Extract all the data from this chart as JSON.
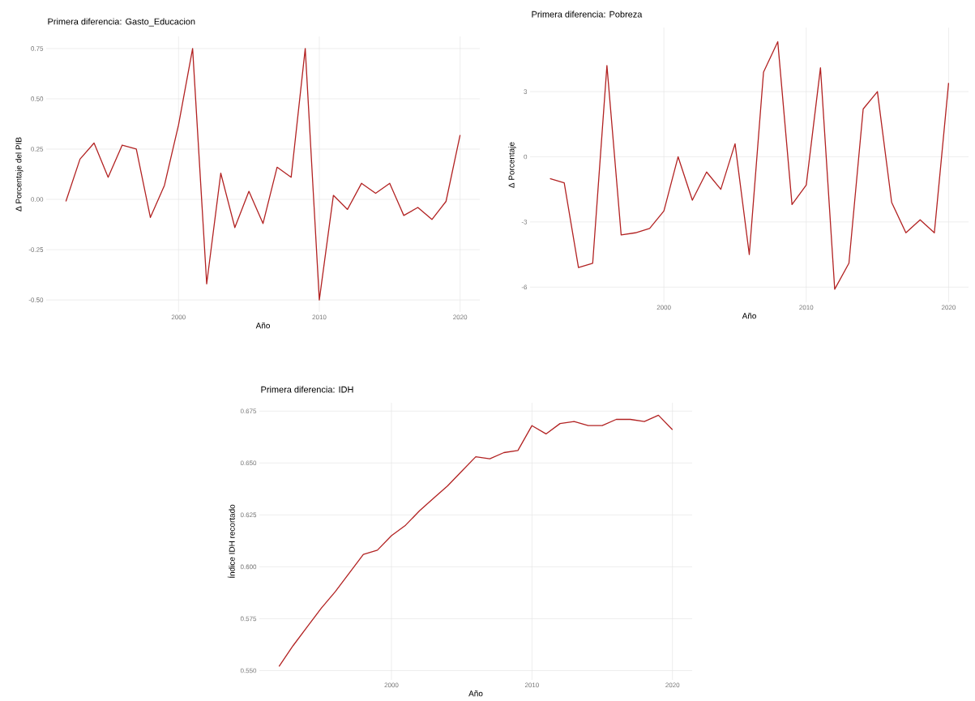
{
  "chart_data": [
    {
      "type": "line",
      "title": "Primera diferencia: Gasto_Educacion",
      "xlabel": "Año",
      "ylabel": "Δ Porcentaje del PIB",
      "color": "#b22222",
      "grid": true,
      "x": [
        1992,
        1993,
        1994,
        1995,
        1996,
        1997,
        1998,
        1999,
        2000,
        2001,
        2002,
        2003,
        2004,
        2005,
        2006,
        2007,
        2008,
        2009,
        2010,
        2011,
        2012,
        2013,
        2014,
        2015,
        2016,
        2017,
        2018,
        2019,
        2020
      ],
      "values": [
        -0.01,
        0.2,
        0.28,
        0.11,
        0.27,
        0.25,
        -0.09,
        0.07,
        0.37,
        0.75,
        -0.42,
        0.13,
        -0.14,
        0.04,
        -0.12,
        0.16,
        0.11,
        0.75,
        -0.5,
        0.02,
        -0.05,
        0.08,
        0.03,
        0.08,
        -0.08,
        -0.04,
        -0.1,
        -0.01,
        0.32
      ],
      "xlim": [
        1990.6,
        2021.4
      ],
      "ylim": [
        -0.56,
        0.81
      ],
      "xticks": [
        2000,
        2010,
        2020
      ],
      "yticks": [
        {
          "value": -0.5,
          "label": "-0.50"
        },
        {
          "value": -0.25,
          "label": "-0.25"
        },
        {
          "value": 0,
          "label": "0.00"
        },
        {
          "value": 0.25,
          "label": "0.25"
        },
        {
          "value": 0.5,
          "label": "0.50"
        },
        {
          "value": 0.75,
          "label": "0.75"
        }
      ]
    },
    {
      "type": "line",
      "title": "Primera diferencia: Pobreza",
      "xlabel": "Año",
      "ylabel": "Δ Porcentaje",
      "color": "#b22222",
      "grid": true,
      "x": [
        1992,
        1993,
        1994,
        1995,
        1996,
        1997,
        1998,
        1999,
        2000,
        2001,
        2002,
        2003,
        2004,
        2005,
        2006,
        2007,
        2008,
        2009,
        2010,
        2011,
        2012,
        2013,
        2014,
        2015,
        2016,
        2017,
        2018,
        2019,
        2020
      ],
      "values": [
        -1.0,
        -1.2,
        -5.1,
        -4.9,
        4.2,
        -3.6,
        -3.5,
        -3.3,
        -2.5,
        0.0,
        -2.0,
        -0.7,
        -1.5,
        0.6,
        -4.5,
        3.9,
        5.3,
        -2.2,
        -1.3,
        4.1,
        -6.1,
        -4.9,
        2.2,
        3.0,
        -2.1,
        -3.5,
        -2.9,
        -3.5,
        3.4
      ],
      "xlim": [
        1990.6,
        2021.4
      ],
      "ylim": [
        -6.7,
        5.95
      ],
      "xticks": [
        2000,
        2010,
        2020
      ],
      "yticks": [
        -6,
        -3,
        0,
        3
      ]
    },
    {
      "type": "line",
      "title": "Primera diferencia: IDH",
      "xlabel": "Año",
      "ylabel": "Índice IDH recortado",
      "color": "#b22222",
      "grid": true,
      "x": [
        1992,
        1993,
        1994,
        1995,
        1996,
        1997,
        1998,
        1999,
        2000,
        2001,
        2002,
        2003,
        2004,
        2005,
        2006,
        2007,
        2008,
        2009,
        2010,
        2011,
        2012,
        2013,
        2014,
        2015,
        2016,
        2017,
        2018,
        2019,
        2020
      ],
      "values": [
        0.552,
        0.562,
        0.571,
        0.58,
        0.588,
        0.597,
        0.606,
        0.608,
        0.615,
        0.62,
        0.627,
        0.633,
        0.639,
        0.646,
        0.653,
        0.652,
        0.655,
        0.656,
        0.668,
        0.664,
        0.669,
        0.67,
        0.668,
        0.668,
        0.671,
        0.671,
        0.67,
        0.673,
        0.666
      ],
      "xlim": [
        1990.6,
        2021.4
      ],
      "ylim": [
        0.5455,
        0.679
      ],
      "xticks": [
        2000,
        2010,
        2020
      ],
      "yticks": [
        {
          "value": 0.55,
          "label": "0.550"
        },
        {
          "value": 0.575,
          "label": "0.575"
        },
        {
          "value": 0.6,
          "label": "0.600"
        },
        {
          "value": 0.625,
          "label": "0.625"
        },
        {
          "value": 0.65,
          "label": "0.650"
        },
        {
          "value": 0.675,
          "label": "0.675"
        }
      ]
    }
  ]
}
